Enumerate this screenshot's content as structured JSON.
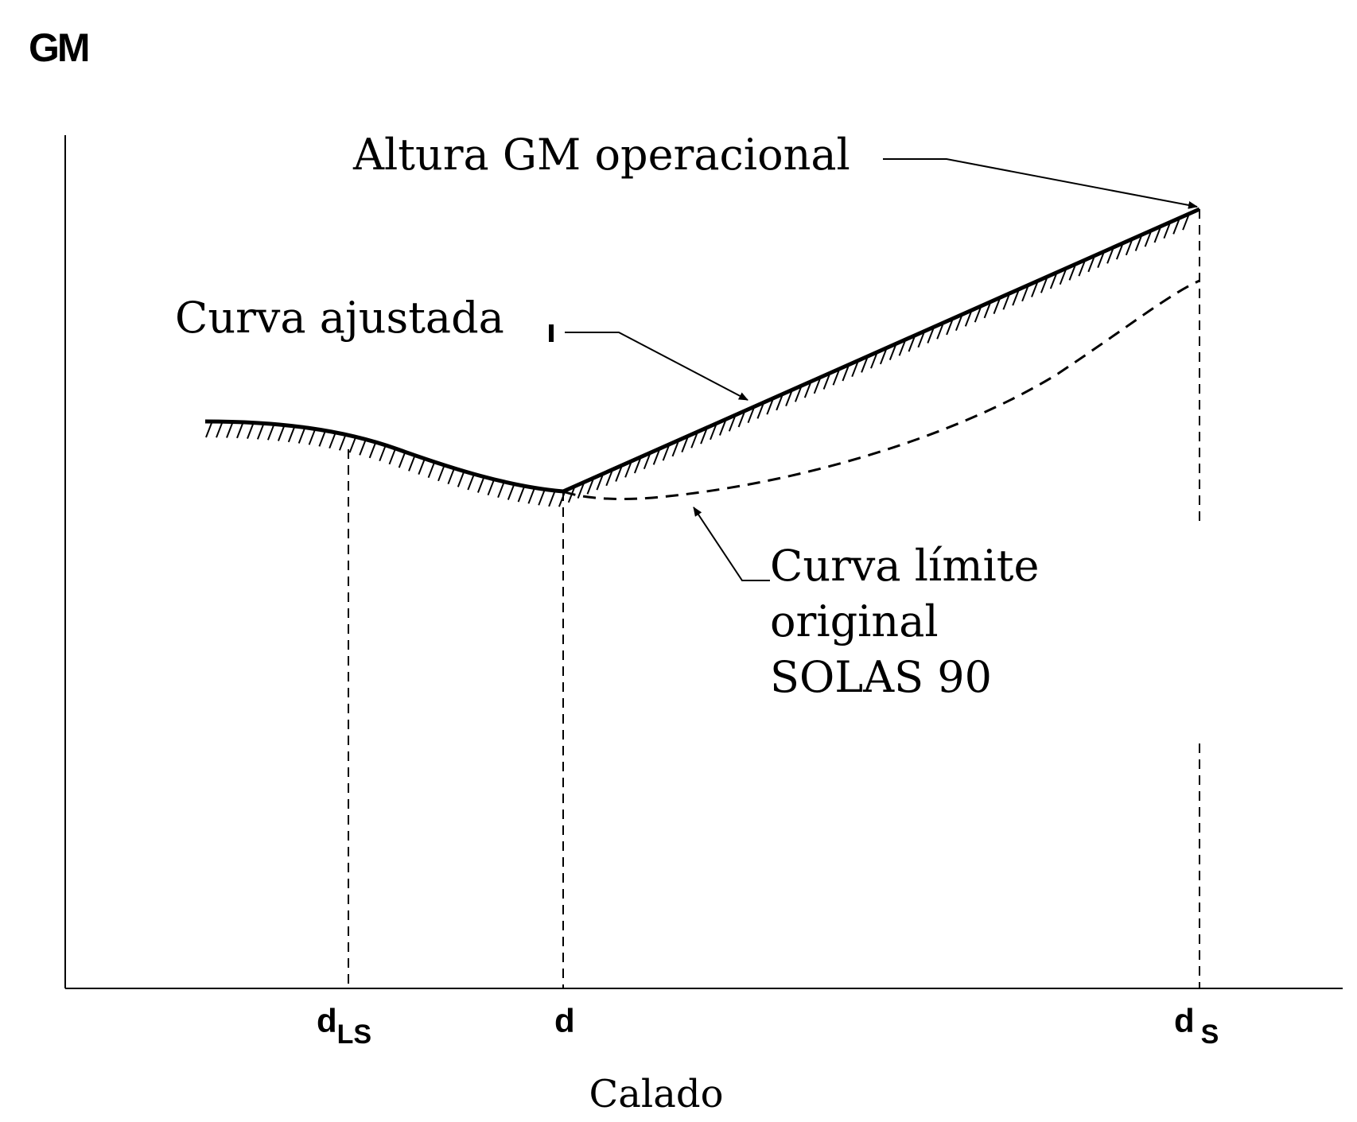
{
  "chart_data": {
    "type": "line",
    "title": "",
    "ylabel": "GM",
    "xlabel": "Calado",
    "x_ticks": [
      {
        "id": "dls",
        "base": "d",
        "sub": "LS"
      },
      {
        "id": "d",
        "base": "d",
        "sub": ""
      },
      {
        "id": "ds",
        "base": "d",
        "sub": "S"
      }
    ],
    "series": [
      {
        "name": "Curva ajustada",
        "style": "solid-hatched"
      },
      {
        "name": "Curva límite original SOLAS 90",
        "style": "dashed"
      }
    ],
    "annotations": {
      "operational": "Altura GM operacional",
      "adjusted": "Curva ajustada",
      "limit_lines": [
        "Curva límite",
        "original",
        "SOLAS 90"
      ]
    },
    "grid": false,
    "legend": "none"
  }
}
